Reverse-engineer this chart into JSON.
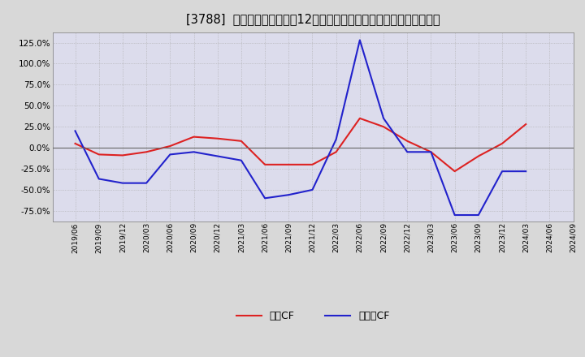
{
  "title": "[3788]  キャッシュフローの12か月移動合計の対前年同期増減率の推移",
  "x_labels": [
    "2019/06",
    "2019/09",
    "2019/12",
    "2020/03",
    "2020/06",
    "2020/09",
    "2020/12",
    "2021/03",
    "2021/06",
    "2021/09",
    "2021/12",
    "2022/03",
    "2022/06",
    "2022/09",
    "2022/12",
    "2023/03",
    "2023/06",
    "2023/09",
    "2023/12",
    "2024/03",
    "2024/06",
    "2024/09"
  ],
  "eigyo_cf": [
    5.0,
    -8.0,
    -9.0,
    -5.0,
    2.0,
    13.0,
    11.0,
    8.0,
    -20.0,
    -20.0,
    -20.0,
    -5.0,
    35.0,
    25.0,
    8.0,
    -5.0,
    -28.0,
    -10.0,
    5.0,
    28.0,
    null,
    null
  ],
  "free_cf": [
    20.0,
    -37.0,
    -42.0,
    -42.0,
    -8.0,
    -5.0,
    -10.0,
    -15.0,
    -60.0,
    -56.0,
    -50.0,
    10.0,
    128.0,
    35.0,
    -5.0,
    -5.0,
    -80.0,
    -80.0,
    -28.0,
    -28.0,
    null,
    null
  ],
  "ylim": [
    -87.5,
    137.5
  ],
  "yticks": [
    -75.0,
    -50.0,
    -25.0,
    0.0,
    25.0,
    50.0,
    75.0,
    100.0,
    125.0
  ],
  "eigyo_color": "#dd2222",
  "free_color": "#2222cc",
  "bg_color": "#d8d8d8",
  "plot_bg_color": "#dcdcec",
  "zero_line_color": "#666666",
  "title_fontsize": 10.5,
  "legend_label_eigyo": "営業CF",
  "legend_label_free": "フリーCF"
}
